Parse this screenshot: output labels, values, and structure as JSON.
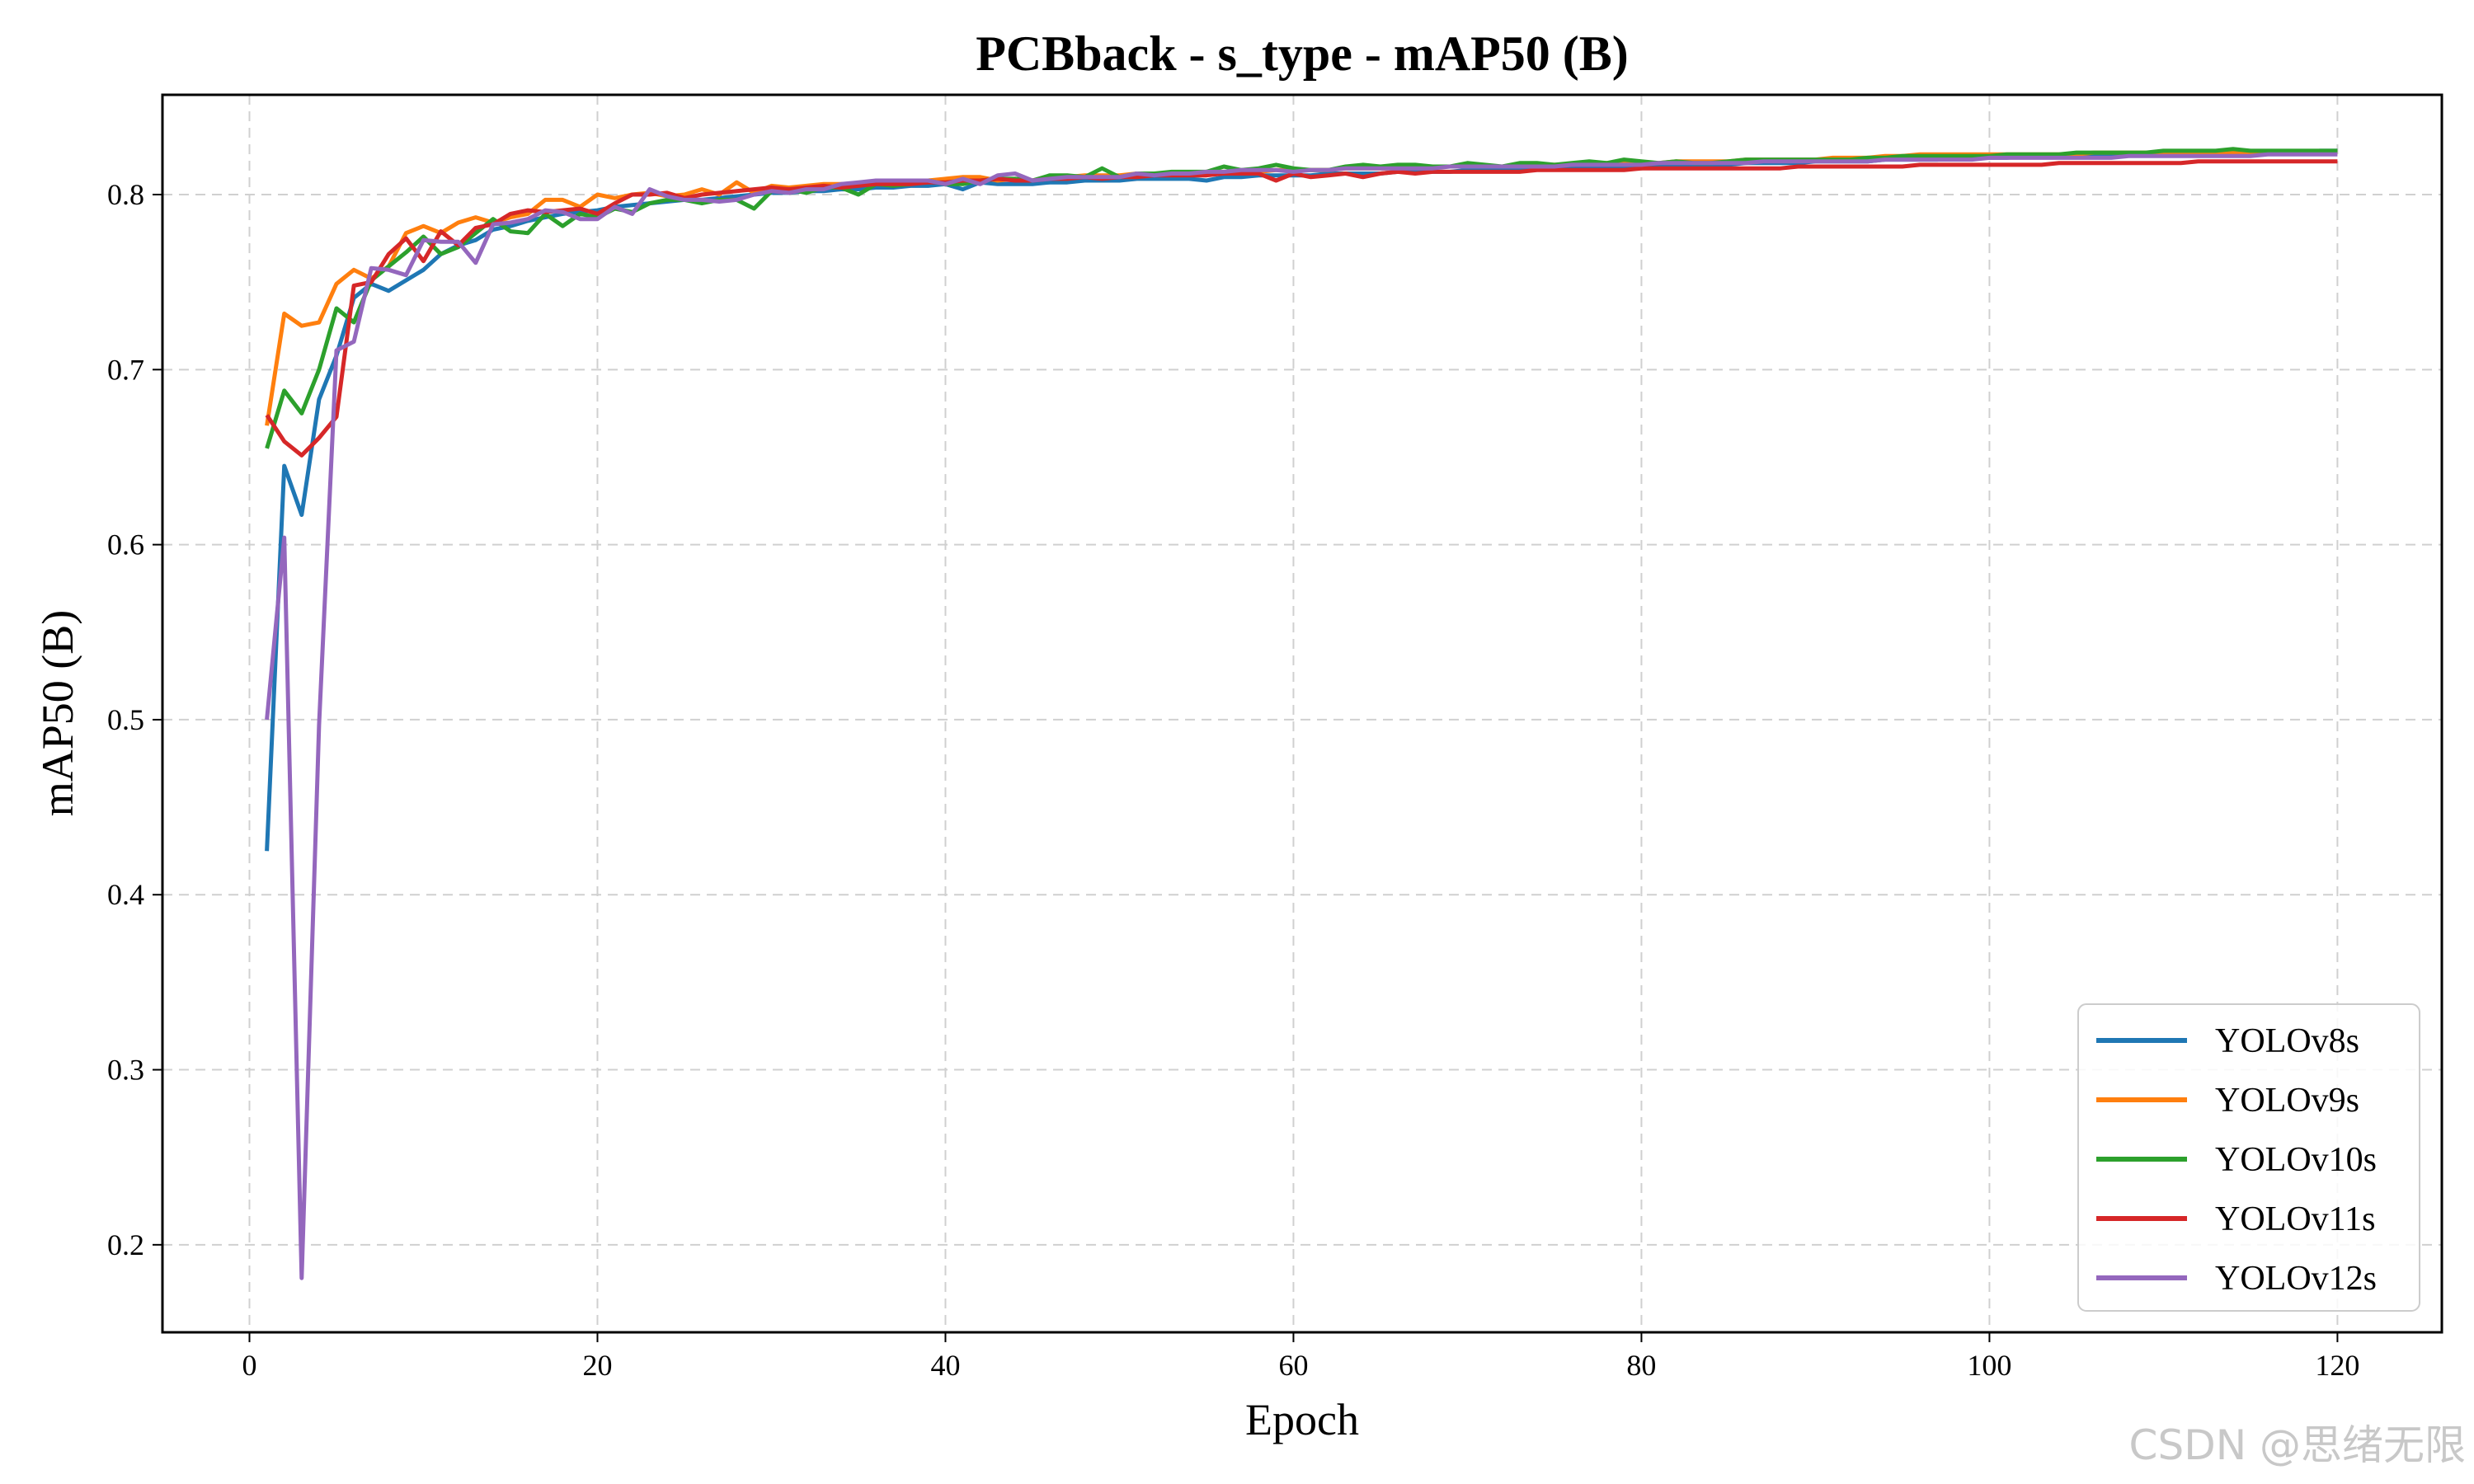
{
  "chart_data": {
    "type": "line",
    "title": "PCBback - s_type - mAP50 (B)",
    "xlabel": "Epoch",
    "ylabel": "mAP50 (B)",
    "xlim": [
      -5,
      126
    ],
    "ylim": [
      0.15,
      0.857
    ],
    "xticks": [
      0,
      20,
      40,
      60,
      80,
      100,
      120
    ],
    "yticks": [
      0.2,
      0.3,
      0.4,
      0.5,
      0.6,
      0.7,
      0.8
    ],
    "grid": true,
    "legend_position": "lower-right",
    "x": [
      1,
      2,
      3,
      4,
      5,
      6,
      7,
      8,
      9,
      10,
      11,
      12,
      13,
      14,
      15,
      16,
      17,
      18,
      19,
      20,
      21,
      22,
      23,
      24,
      25,
      26,
      27,
      28,
      29,
      30,
      31,
      32,
      33,
      34,
      35,
      36,
      37,
      38,
      39,
      40,
      41,
      42,
      43,
      44,
      45,
      46,
      47,
      48,
      49,
      50,
      51,
      52,
      53,
      54,
      55,
      56,
      57,
      58,
      59,
      60,
      61,
      62,
      63,
      64,
      65,
      66,
      67,
      68,
      69,
      70,
      71,
      72,
      73,
      74,
      75,
      76,
      77,
      78,
      79,
      80,
      81,
      82,
      83,
      84,
      85,
      86,
      87,
      88,
      89,
      90,
      91,
      92,
      93,
      94,
      95,
      96,
      97,
      98,
      99,
      100,
      101,
      102,
      103,
      104,
      105,
      106,
      107,
      108,
      109,
      110,
      111,
      112,
      113,
      114,
      115,
      116,
      117,
      118,
      119,
      120
    ],
    "series": [
      {
        "name": "YOLOv8s",
        "color": "#1f77b4",
        "values": [
          0.425,
          0.645,
          0.617,
          0.683,
          0.708,
          0.741,
          0.749,
          0.745,
          0.751,
          0.757,
          0.766,
          0.771,
          0.774,
          0.78,
          0.782,
          0.785,
          0.787,
          0.789,
          0.79,
          0.791,
          0.793,
          0.794,
          0.795,
          0.796,
          0.797,
          0.797,
          0.798,
          0.799,
          0.8,
          0.801,
          0.801,
          0.802,
          0.802,
          0.803,
          0.803,
          0.804,
          0.804,
          0.805,
          0.805,
          0.806,
          0.803,
          0.807,
          0.806,
          0.806,
          0.806,
          0.807,
          0.807,
          0.808,
          0.808,
          0.808,
          0.809,
          0.809,
          0.809,
          0.809,
          0.808,
          0.81,
          0.81,
          0.811,
          0.811,
          0.811,
          0.811,
          0.812,
          0.812,
          0.812,
          0.812,
          0.813,
          0.813,
          0.813,
          0.813,
          0.814,
          0.814,
          0.814,
          0.814,
          0.815,
          0.815,
          0.815,
          0.815,
          0.816,
          0.816,
          0.816,
          0.816,
          0.817,
          0.817,
          0.817,
          0.817,
          0.818,
          0.818,
          0.818,
          0.818,
          0.819,
          0.819,
          0.819,
          0.819,
          0.82,
          0.82,
          0.82,
          0.82,
          0.821,
          0.821,
          0.821,
          0.821,
          0.822,
          0.822,
          0.822,
          0.822,
          0.822,
          0.823,
          0.823,
          0.823,
          0.823,
          0.823,
          0.823,
          0.824,
          0.824,
          0.824,
          0.824,
          0.824,
          0.824,
          0.825,
          0.825
        ]
      },
      {
        "name": "YOLOv9s",
        "color": "#ff7f0e",
        "values": [
          0.668,
          0.732,
          0.725,
          0.727,
          0.749,
          0.757,
          0.752,
          0.759,
          0.778,
          0.782,
          0.778,
          0.784,
          0.787,
          0.784,
          0.787,
          0.789,
          0.797,
          0.797,
          0.793,
          0.8,
          0.798,
          0.8,
          0.801,
          0.799,
          0.8,
          0.803,
          0.8,
          0.807,
          0.801,
          0.805,
          0.804,
          0.805,
          0.806,
          0.806,
          0.806,
          0.807,
          0.807,
          0.808,
          0.808,
          0.809,
          0.81,
          0.81,
          0.808,
          0.809,
          0.808,
          0.81,
          0.81,
          0.811,
          0.811,
          0.811,
          0.812,
          0.812,
          0.812,
          0.812,
          0.813,
          0.813,
          0.813,
          0.813,
          0.814,
          0.814,
          0.814,
          0.814,
          0.815,
          0.815,
          0.815,
          0.815,
          0.816,
          0.816,
          0.816,
          0.816,
          0.816,
          0.816,
          0.817,
          0.817,
          0.817,
          0.817,
          0.818,
          0.818,
          0.818,
          0.818,
          0.818,
          0.819,
          0.819,
          0.819,
          0.819,
          0.82,
          0.82,
          0.82,
          0.82,
          0.82,
          0.821,
          0.821,
          0.821,
          0.822,
          0.822,
          0.823,
          0.823,
          0.823,
          0.823,
          0.823,
          0.823,
          0.823,
          0.823,
          0.823,
          0.823,
          0.824,
          0.824,
          0.824,
          0.824,
          0.824,
          0.824,
          0.824,
          0.824,
          0.824,
          0.824,
          0.824,
          0.824,
          0.824,
          0.824,
          0.824
        ]
      },
      {
        "name": "YOLOv10s",
        "color": "#2ca02c",
        "values": [
          0.655,
          0.688,
          0.675,
          0.7,
          0.735,
          0.727,
          0.751,
          0.759,
          0.767,
          0.776,
          0.766,
          0.77,
          0.778,
          0.786,
          0.779,
          0.778,
          0.789,
          0.782,
          0.789,
          0.787,
          0.792,
          0.79,
          0.795,
          0.797,
          0.797,
          0.795,
          0.797,
          0.797,
          0.792,
          0.802,
          0.803,
          0.801,
          0.804,
          0.804,
          0.8,
          0.806,
          0.805,
          0.806,
          0.808,
          0.806,
          0.806,
          0.808,
          0.809,
          0.809,
          0.808,
          0.811,
          0.811,
          0.81,
          0.815,
          0.81,
          0.812,
          0.812,
          0.813,
          0.813,
          0.813,
          0.816,
          0.814,
          0.815,
          0.817,
          0.815,
          0.814,
          0.814,
          0.816,
          0.817,
          0.816,
          0.817,
          0.817,
          0.816,
          0.816,
          0.818,
          0.817,
          0.816,
          0.818,
          0.818,
          0.817,
          0.818,
          0.819,
          0.818,
          0.82,
          0.819,
          0.818,
          0.819,
          0.818,
          0.818,
          0.819,
          0.82,
          0.82,
          0.82,
          0.82,
          0.82,
          0.82,
          0.82,
          0.821,
          0.821,
          0.822,
          0.822,
          0.822,
          0.822,
          0.822,
          0.822,
          0.823,
          0.823,
          0.823,
          0.823,
          0.824,
          0.824,
          0.824,
          0.824,
          0.824,
          0.825,
          0.825,
          0.825,
          0.825,
          0.826,
          0.825,
          0.825,
          0.825,
          0.825,
          0.825,
          0.825
        ]
      },
      {
        "name": "YOLOv11s",
        "color": "#d62728",
        "values": [
          0.674,
          0.659,
          0.651,
          0.661,
          0.673,
          0.748,
          0.75,
          0.766,
          0.775,
          0.762,
          0.779,
          0.771,
          0.781,
          0.783,
          0.789,
          0.791,
          0.79,
          0.791,
          0.792,
          0.789,
          0.795,
          0.8,
          0.8,
          0.801,
          0.798,
          0.8,
          0.801,
          0.802,
          0.803,
          0.804,
          0.803,
          0.804,
          0.805,
          0.804,
          0.805,
          0.806,
          0.806,
          0.806,
          0.807,
          0.807,
          0.808,
          0.808,
          0.809,
          0.808,
          0.808,
          0.809,
          0.809,
          0.81,
          0.809,
          0.81,
          0.81,
          0.811,
          0.811,
          0.811,
          0.811,
          0.812,
          0.812,
          0.812,
          0.808,
          0.812,
          0.81,
          0.811,
          0.812,
          0.81,
          0.812,
          0.813,
          0.812,
          0.813,
          0.813,
          0.813,
          0.813,
          0.813,
          0.813,
          0.814,
          0.814,
          0.814,
          0.814,
          0.814,
          0.814,
          0.815,
          0.815,
          0.815,
          0.815,
          0.815,
          0.815,
          0.815,
          0.815,
          0.815,
          0.816,
          0.816,
          0.816,
          0.816,
          0.816,
          0.816,
          0.816,
          0.817,
          0.817,
          0.817,
          0.817,
          0.817,
          0.817,
          0.817,
          0.817,
          0.818,
          0.818,
          0.818,
          0.818,
          0.818,
          0.818,
          0.818,
          0.818,
          0.819,
          0.819,
          0.819,
          0.819,
          0.819,
          0.819,
          0.819,
          0.819,
          0.819
        ]
      },
      {
        "name": "YOLOv12s",
        "color": "#9467bd",
        "values": [
          0.5,
          0.604,
          0.181,
          0.497,
          0.711,
          0.716,
          0.758,
          0.757,
          0.754,
          0.774,
          0.773,
          0.773,
          0.761,
          0.783,
          0.784,
          0.786,
          0.791,
          0.79,
          0.786,
          0.786,
          0.793,
          0.789,
          0.803,
          0.799,
          0.797,
          0.797,
          0.796,
          0.797,
          0.8,
          0.802,
          0.801,
          0.803,
          0.803,
          0.806,
          0.807,
          0.808,
          0.808,
          0.808,
          0.808,
          0.806,
          0.809,
          0.806,
          0.811,
          0.812,
          0.808,
          0.809,
          0.81,
          0.81,
          0.81,
          0.81,
          0.812,
          0.811,
          0.812,
          0.812,
          0.813,
          0.813,
          0.814,
          0.814,
          0.814,
          0.813,
          0.814,
          0.814,
          0.815,
          0.815,
          0.815,
          0.815,
          0.815,
          0.815,
          0.816,
          0.816,
          0.816,
          0.816,
          0.816,
          0.816,
          0.816,
          0.817,
          0.817,
          0.817,
          0.817,
          0.817,
          0.818,
          0.818,
          0.818,
          0.818,
          0.818,
          0.818,
          0.819,
          0.819,
          0.819,
          0.819,
          0.819,
          0.819,
          0.819,
          0.82,
          0.82,
          0.82,
          0.82,
          0.82,
          0.82,
          0.821,
          0.821,
          0.821,
          0.821,
          0.821,
          0.821,
          0.821,
          0.821,
          0.822,
          0.822,
          0.822,
          0.822,
          0.822,
          0.822,
          0.822,
          0.822,
          0.823,
          0.823,
          0.823,
          0.823,
          0.823
        ]
      }
    ]
  },
  "watermark": "CSDN @思绪无限"
}
